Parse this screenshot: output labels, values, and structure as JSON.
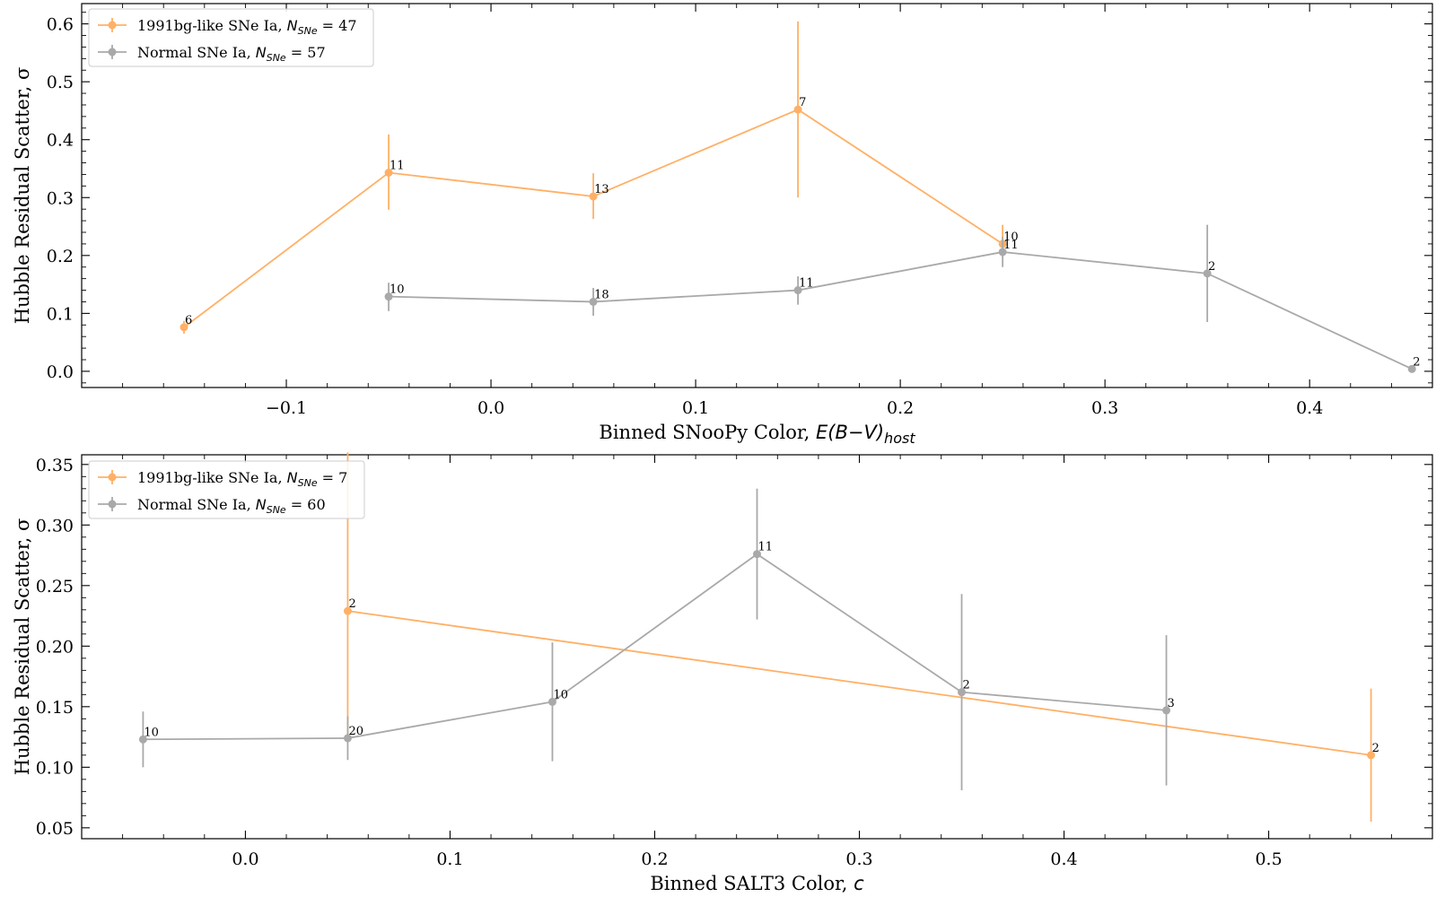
{
  "chart_data": [
    {
      "type": "line",
      "title": "",
      "xlabel": "Binned SNooPy Color, ",
      "xlabel_math": "E(B−V)",
      "xlabel_sub": "host",
      "ylabel": "Hubble Residual Scatter, σ",
      "xlim": [
        -0.2,
        0.46
      ],
      "ylim": [
        -0.028,
        0.635
      ],
      "xticks": [
        -0.1,
        0.0,
        0.1,
        0.2,
        0.3,
        0.4
      ],
      "xtick_labels": [
        "−0.1",
        "0.0",
        "0.1",
        "0.2",
        "0.3",
        "0.4"
      ],
      "yticks": [
        0.0,
        0.1,
        0.2,
        0.3,
        0.4,
        0.5,
        0.6
      ],
      "ytick_labels": [
        "0.0",
        "0.1",
        "0.2",
        "0.3",
        "0.4",
        "0.5",
        "0.6"
      ],
      "grid": false,
      "legend_position": "top-left",
      "series": [
        {
          "name": "1991bg-like SNe Ia, ",
          "n_label": "N",
          "n_sub": "SNe",
          "n_value": " = 47",
          "color": "#ffb066",
          "x": [
            -0.15,
            -0.05,
            0.05,
            0.15,
            0.25
          ],
          "y": [
            0.076,
            0.343,
            0.302,
            0.452,
            0.22
          ],
          "yerr_low": [
            0.065,
            0.279,
            0.263,
            0.3,
            0.197
          ],
          "yerr_high": [
            0.087,
            0.409,
            0.342,
            0.604,
            0.253
          ],
          "labels": [
            "6",
            "11",
            "13",
            "7",
            "10"
          ]
        },
        {
          "name": "Normal SNe Ia, ",
          "n_label": "N",
          "n_sub": "SNe",
          "n_value": " = 57",
          "color": "#a9a9a9",
          "x": [
            -0.05,
            0.05,
            0.15,
            0.25,
            0.35,
            0.45
          ],
          "y": [
            0.129,
            0.12,
            0.14,
            0.206,
            0.169,
            0.004
          ],
          "yerr_low": [
            0.104,
            0.096,
            0.115,
            0.18,
            0.085,
            0.004
          ],
          "yerr_high": [
            0.153,
            0.144,
            0.164,
            0.232,
            0.253,
            0.004
          ],
          "labels": [
            "10",
            "18",
            "11",
            "11",
            "2",
            "2"
          ]
        }
      ]
    },
    {
      "type": "line",
      "title": "",
      "xlabel": "Binned SALT3 Color, ",
      "xlabel_math": "c",
      "xlabel_sub": "",
      "ylabel": "Hubble Residual Scatter, σ",
      "xlim": [
        -0.08,
        0.58
      ],
      "ylim": [
        0.041,
        0.358
      ],
      "xticks": [
        0.0,
        0.1,
        0.2,
        0.3,
        0.4,
        0.5
      ],
      "xtick_labels": [
        "0.0",
        "0.1",
        "0.2",
        "0.3",
        "0.4",
        "0.5"
      ],
      "yticks": [
        0.05,
        0.1,
        0.15,
        0.2,
        0.25,
        0.3,
        0.35
      ],
      "ytick_labels": [
        "0.05",
        "0.10",
        "0.15",
        "0.20",
        "0.25",
        "0.30",
        "0.35"
      ],
      "grid": false,
      "legend_position": "top-left",
      "series": [
        {
          "name": "1991bg-like SNe Ia, ",
          "n_label": "N",
          "n_sub": "SNe",
          "n_value": " = 7",
          "color": "#ffb066",
          "x": [
            0.05,
            0.55
          ],
          "y": [
            0.229,
            0.11
          ],
          "yerr_low": [
            0.12,
            0.055
          ],
          "yerr_high": [
            0.36,
            0.165
          ],
          "labels": [
            "2",
            "2"
          ]
        },
        {
          "name": "Normal SNe Ia, ",
          "n_label": "N",
          "n_sub": "SNe",
          "n_value": " = 60",
          "color": "#a9a9a9",
          "x": [
            -0.05,
            0.05,
            0.15,
            0.25,
            0.35,
            0.45
          ],
          "y": [
            0.123,
            0.124,
            0.154,
            0.276,
            0.162,
            0.147
          ],
          "yerr_low": [
            0.1,
            0.106,
            0.105,
            0.222,
            0.081,
            0.085
          ],
          "yerr_high": [
            0.146,
            0.142,
            0.203,
            0.33,
            0.243,
            0.209
          ],
          "labels": [
            "10",
            "20",
            "10",
            "11",
            "2",
            "3"
          ]
        }
      ]
    }
  ]
}
